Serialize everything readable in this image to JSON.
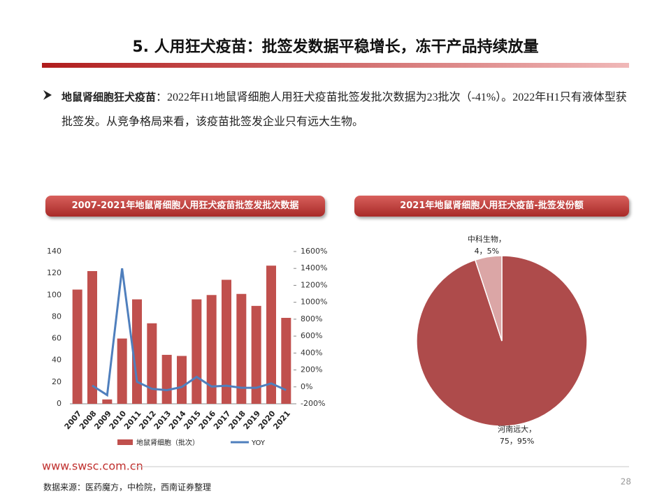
{
  "header": {
    "title": "5. 人用狂犬疫苗：批签发数据平稳增长，冻干产品持续放量"
  },
  "bullet": {
    "heading": "地鼠肾细胞狂犬疫苗",
    "text": "：2022年H1地鼠肾细胞人用狂犬疫苗批签发批次数据为23批次（-41%）。2022年H1只有液体型获批签发。从竞争格局来看，该疫苗批签发企业只有远大生物。"
  },
  "chart_data": [
    {
      "type": "bar",
      "title": "2007-2021年地鼠肾细胞人用狂犬疫苗批签发批次数据",
      "categories": [
        "2007",
        "2008",
        "2009",
        "2010",
        "2011",
        "2012",
        "2013",
        "2014",
        "2015",
        "2016",
        "2017",
        "2018",
        "2019",
        "2020",
        "2021"
      ],
      "series": [
        {
          "name": "地鼠肾细胞（批次）",
          "type": "bar",
          "color": "#c0504d",
          "values": [
            105,
            122,
            4,
            60,
            96,
            74,
            45,
            44,
            96,
            100,
            114,
            101,
            90,
            127,
            79
          ]
        },
        {
          "name": "YOY",
          "type": "line",
          "axis": "y2",
          "color": "#4f7fbd",
          "values": [
            null,
            16,
            -97,
            1400,
            60,
            -23,
            -39,
            -2,
            118,
            4,
            14,
            -11,
            -11,
            41,
            -38
          ]
        }
      ],
      "ylim": [
        0,
        140
      ],
      "yticks": [
        0,
        20,
        40,
        60,
        80,
        100,
        120,
        140
      ],
      "y2lim": [
        -200,
        1600
      ],
      "y2ticks": [
        {
          "value": -200,
          "label": "-200%"
        },
        {
          "value": 0,
          "label": "0%"
        },
        {
          "value": 200,
          "label": "200%"
        },
        {
          "value": 400,
          "label": "400%"
        },
        {
          "value": 600,
          "label": "600%"
        },
        {
          "value": 800,
          "label": "800%"
        },
        {
          "value": 1000,
          "label": "1000%"
        },
        {
          "value": 1200,
          "label": "1200%"
        },
        {
          "value": 1400,
          "label": "1400%"
        },
        {
          "value": 1600,
          "label": "1600%"
        }
      ]
    },
    {
      "type": "pie",
      "title": "2021年地鼠肾细胞人用狂犬疫苗-批签发份额",
      "categories": [
        "河南远大，",
        "中科生物，"
      ],
      "values": [
        75,
        4
      ],
      "value_labels": [
        "75，95%",
        "4，5%"
      ],
      "colors": [
        "#ae4b4b",
        "#dba6a6"
      ]
    }
  ],
  "footer": {
    "website": "www.swsc.com.cn",
    "source": "数据来源：医药魔方，中检院，西南证券整理",
    "page": 28
  }
}
